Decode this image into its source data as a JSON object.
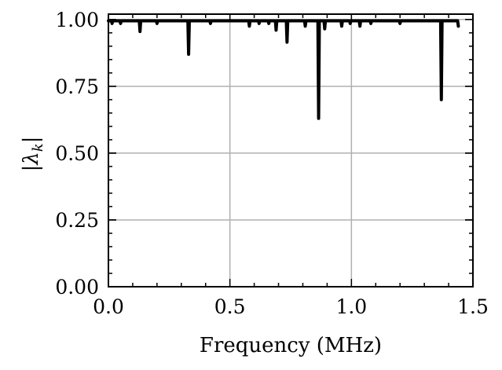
{
  "chart_data": {
    "type": "line",
    "title": "",
    "xlabel": "Frequency (MHz)",
    "ylabel": "|λ_k|",
    "ylabel_parts": {
      "outer_left": "|",
      "symbol": "λ",
      "subscript": "k",
      "outer_right": "|"
    },
    "xlim": [
      0.0,
      1.5
    ],
    "ylim": [
      0.0,
      1.02
    ],
    "grid": true,
    "legend": "none",
    "x_ticks": [
      0.0,
      0.5,
      1.0,
      1.5
    ],
    "x_tick_labels": [
      "0.0",
      "0.5",
      "1.0",
      "1.5"
    ],
    "y_ticks": [
      0.0,
      0.25,
      0.5,
      0.75,
      1.0
    ],
    "y_tick_labels": [
      "0.00",
      "0.25",
      "0.50",
      "0.75",
      "1.00"
    ],
    "x_minor_step": 0.1,
    "y_minor_step": 0.05,
    "line_color": "#000000",
    "grid_color": "#b0b0b0",
    "series": [
      {
        "x_range": [
          0.0,
          1.44
        ],
        "baseline": 0.995,
        "dips": [
          {
            "x": 0.015,
            "y": 0.985
          },
          {
            "x": 0.05,
            "y": 0.985
          },
          {
            "x": 0.13,
            "y": 0.955
          },
          {
            "x": 0.2,
            "y": 0.985
          },
          {
            "x": 0.33,
            "y": 0.87
          },
          {
            "x": 0.42,
            "y": 0.985
          },
          {
            "x": 0.58,
            "y": 0.975
          },
          {
            "x": 0.62,
            "y": 0.985
          },
          {
            "x": 0.66,
            "y": 0.985
          },
          {
            "x": 0.69,
            "y": 0.96
          },
          {
            "x": 0.735,
            "y": 0.915
          },
          {
            "x": 0.81,
            "y": 0.975
          },
          {
            "x": 0.865,
            "y": 0.63
          },
          {
            "x": 0.89,
            "y": 0.965
          },
          {
            "x": 0.96,
            "y": 0.975
          },
          {
            "x": 0.995,
            "y": 0.985
          },
          {
            "x": 1.035,
            "y": 0.975
          },
          {
            "x": 1.08,
            "y": 0.985
          },
          {
            "x": 1.2,
            "y": 0.985
          },
          {
            "x": 1.37,
            "y": 0.7
          },
          {
            "x": 1.44,
            "y": 0.975
          }
        ]
      }
    ]
  }
}
